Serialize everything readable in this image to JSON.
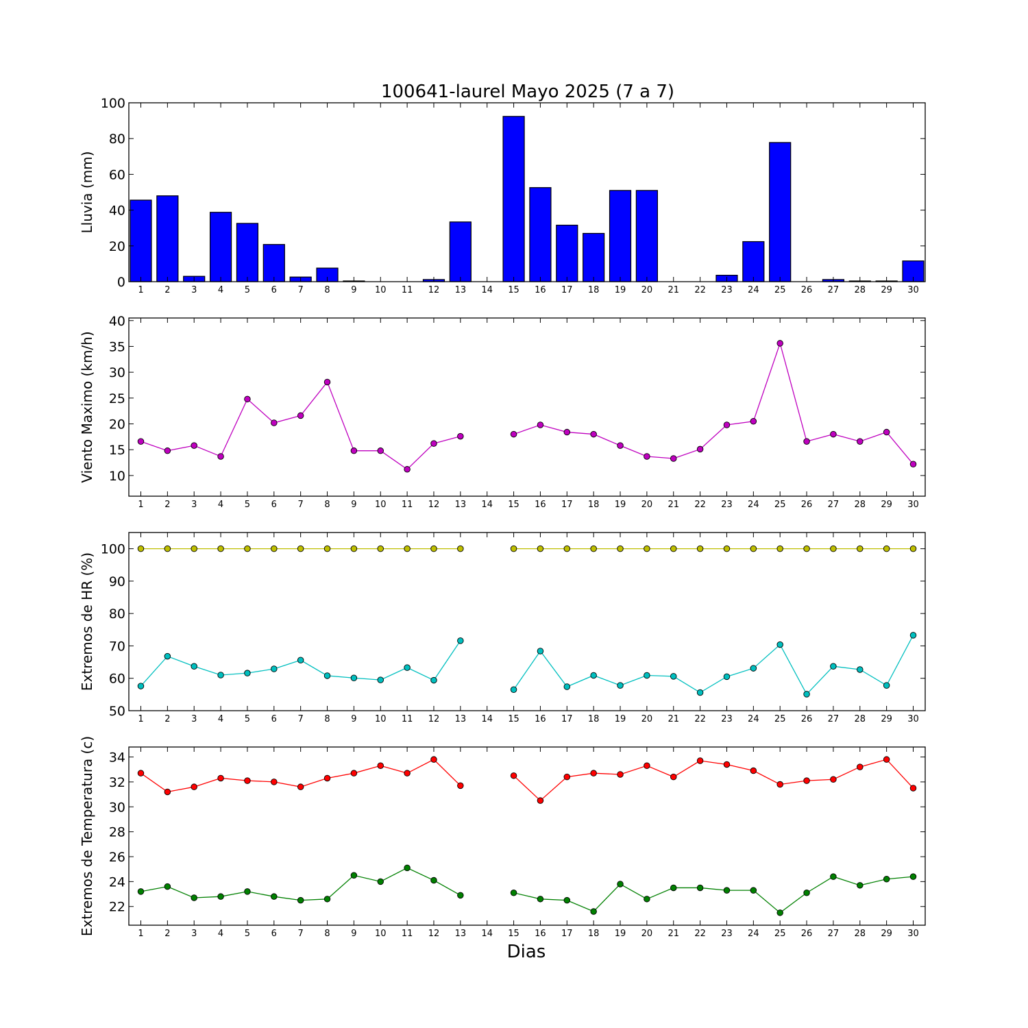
{
  "title": "100641-laurel Mayo 2025  (7 a 7)",
  "xlabel": "Dias",
  "chart_data": [
    {
      "type": "bar",
      "ylabel": "Lluvia (mm)",
      "ylim": [
        0,
        100
      ],
      "yticks": [
        0,
        20,
        40,
        60,
        80,
        100
      ],
      "x": [
        1,
        2,
        3,
        4,
        5,
        6,
        7,
        8,
        9,
        10,
        11,
        12,
        13,
        14,
        15,
        16,
        17,
        18,
        19,
        20,
        21,
        22,
        23,
        24,
        25,
        26,
        27,
        28,
        29,
        30
      ],
      "series": [
        {
          "color": "#0000ff",
          "values": [
            45.6,
            48,
            3,
            38.8,
            32.6,
            20.8,
            2.6,
            7.6,
            0.4,
            0,
            0,
            1.2,
            33.4,
            0,
            92.4,
            52.6,
            31.6,
            27,
            51,
            51,
            0,
            0,
            3.6,
            22.4,
            77.8,
            0,
            1.2,
            0.4,
            0.4,
            11.6
          ]
        }
      ]
    },
    {
      "type": "line",
      "ylabel": "Viento Maximo (km/h)",
      "ylim": [
        6,
        40.5
      ],
      "yticks": [
        10,
        15,
        20,
        25,
        30,
        35,
        40
      ],
      "x": [
        1,
        2,
        3,
        4,
        5,
        6,
        7,
        8,
        9,
        10,
        11,
        12,
        13,
        14,
        15,
        16,
        17,
        18,
        19,
        20,
        21,
        22,
        23,
        24,
        25,
        26,
        27,
        28,
        29,
        30
      ],
      "series": [
        {
          "color": "#bf00bf",
          "values": [
            16.6,
            14.8,
            15.8,
            13.7,
            24.8,
            20.2,
            21.6,
            28.1,
            14.8,
            14.8,
            11.2,
            16.2,
            17.6,
            null,
            18,
            19.8,
            18.4,
            18,
            15.8,
            13.7,
            13.3,
            15.1,
            19.8,
            20.5,
            35.6,
            16.6,
            18,
            16.6,
            18.4,
            12.2
          ]
        }
      ]
    },
    {
      "type": "line",
      "ylabel": "Extremos de HR (%)",
      "ylim": [
        50,
        105
      ],
      "yticks": [
        50,
        60,
        70,
        80,
        90,
        100
      ],
      "x": [
        1,
        2,
        3,
        4,
        5,
        6,
        7,
        8,
        9,
        10,
        11,
        12,
        13,
        14,
        15,
        16,
        17,
        18,
        19,
        20,
        21,
        22,
        23,
        24,
        25,
        26,
        27,
        28,
        29,
        30
      ],
      "series": [
        {
          "color": "#bfbf00",
          "values": [
            100,
            100,
            100,
            100,
            100,
            100,
            100,
            100,
            100,
            100,
            100,
            100,
            100,
            null,
            100,
            100,
            100,
            100,
            100,
            100,
            100,
            100,
            100,
            100,
            100,
            100,
            100,
            100,
            100,
            100
          ]
        },
        {
          "color": "#00bfbf",
          "values": [
            57.6,
            66.8,
            63.7,
            61,
            61.6,
            62.9,
            65.6,
            60.8,
            60.1,
            59.5,
            63.3,
            59.4,
            71.6,
            null,
            56.5,
            68.4,
            57.4,
            60.9,
            57.8,
            60.9,
            60.6,
            55.6,
            60.5,
            63.1,
            70.4,
            55.1,
            63.7,
            62.7,
            57.8,
            73.3
          ]
        }
      ]
    },
    {
      "type": "line",
      "ylabel": "Extremos de Temperatura (c)",
      "ylim": [
        20.5,
        34.8
      ],
      "yticks": [
        22,
        24,
        26,
        28,
        30,
        32,
        34
      ],
      "x": [
        1,
        2,
        3,
        4,
        5,
        6,
        7,
        8,
        9,
        10,
        11,
        12,
        13,
        14,
        15,
        16,
        17,
        18,
        19,
        20,
        21,
        22,
        23,
        24,
        25,
        26,
        27,
        28,
        29,
        30
      ],
      "series": [
        {
          "color": "#ff0000",
          "values": [
            32.7,
            31.2,
            31.6,
            32.3,
            32.1,
            32,
            31.6,
            32.3,
            32.7,
            33.3,
            32.7,
            33.8,
            31.7,
            null,
            32.5,
            30.5,
            32.4,
            32.7,
            32.6,
            33.3,
            32.4,
            33.7,
            33.4,
            32.9,
            31.8,
            32.1,
            32.2,
            33.2,
            33.8,
            31.5
          ]
        },
        {
          "color": "#008000",
          "values": [
            23.2,
            23.6,
            22.7,
            22.8,
            23.2,
            22.8,
            22.5,
            22.6,
            24.5,
            24,
            25.1,
            24.1,
            22.9,
            null,
            23.1,
            22.6,
            22.5,
            21.6,
            23.8,
            22.6,
            23.5,
            23.5,
            23.3,
            23.3,
            21.5,
            23.1,
            24.4,
            23.7,
            24.2,
            24.4
          ]
        }
      ]
    }
  ]
}
